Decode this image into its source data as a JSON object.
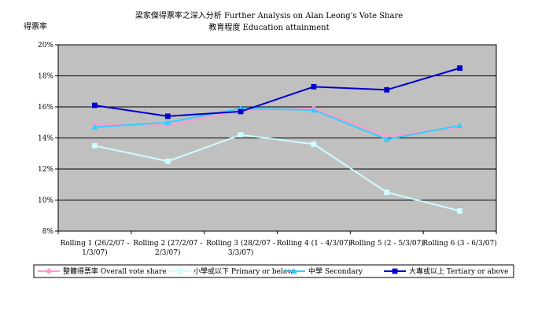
{
  "chart_data": {
    "type": "line",
    "title": "梁家傑得票率之深入分析 Further Analysis on Alan Leong's Vote Share",
    "subtitle": "教育程度 Education attainment",
    "ylabel": "得票率",
    "xlabel": "",
    "ylim": [
      8,
      20
    ],
    "yticks": [
      "20%",
      "18%",
      "16%",
      "14%",
      "12%",
      "10%",
      "8%"
    ],
    "ytick_values": [
      20,
      18,
      16,
      14,
      12,
      10,
      8
    ],
    "grid": true,
    "plot_background": "#c0c0c0",
    "legend_position": "bottom",
    "categories": [
      [
        "Rolling 1 (26/2/07 -",
        "1/3/07)"
      ],
      [
        "Rolling 2 (27/2/07 -",
        "2/3/07)"
      ],
      [
        "Rolling 3 (28/2/07 -",
        "3/3/07)"
      ],
      [
        "Rolling 4 (1 - 4/3/07)"
      ],
      [
        "Rolling 5 (2 - 5/3/07)"
      ],
      [
        "Rolling 6 (3 - 6/3/07)"
      ]
    ],
    "series": [
      {
        "name": "整體得票率 Overall vote share",
        "color": "#ff99cc",
        "marker": "diamond",
        "values": [
          14.9,
          14.8,
          15.8,
          15.9,
          14.1,
          14.7
        ]
      },
      {
        "name": "小學或以下 Primary or below",
        "color": "#ccffff",
        "marker": "square",
        "values": [
          13.5,
          12.5,
          14.2,
          13.6,
          10.5,
          9.3
        ]
      },
      {
        "name": "中學 Secondary",
        "color": "#33ccff",
        "marker": "triangle",
        "values": [
          14.7,
          15.0,
          15.9,
          15.8,
          13.9,
          14.8
        ]
      },
      {
        "name": "大專或以上 Tertiary or above",
        "color": "#0000cc",
        "marker": "square",
        "values": [
          16.1,
          15.4,
          15.7,
          17.3,
          17.1,
          18.5
        ]
      }
    ]
  }
}
